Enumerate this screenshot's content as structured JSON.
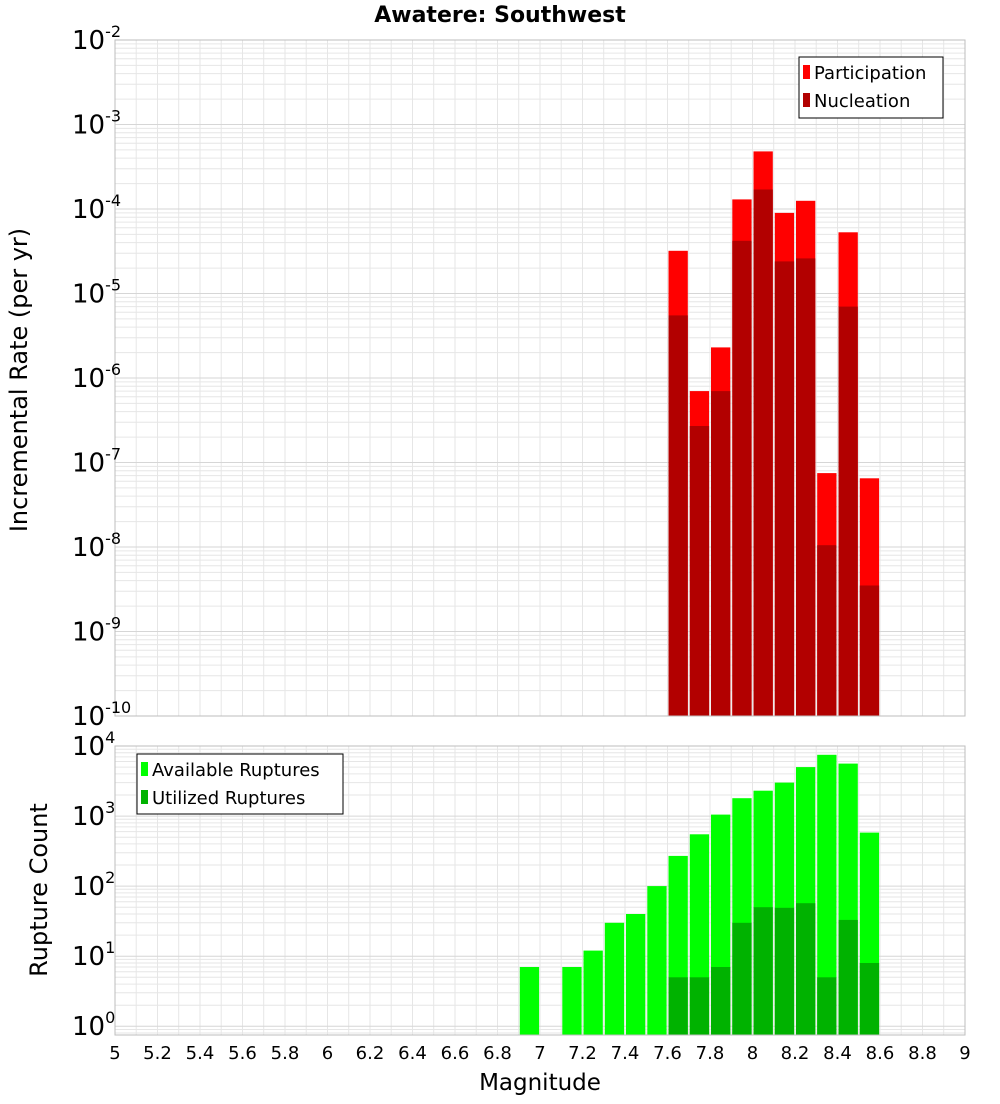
{
  "title": "Awatere: Southwest",
  "colors": {
    "participation": "#ff0000",
    "nucleation": "#b20000",
    "available": "#00ff00",
    "utilized": "#00b200",
    "grid": "#e6e6e6",
    "frame": "#bdbdbd"
  },
  "chart_data": [
    {
      "type": "bar",
      "panel": "top",
      "ylabel": "Incremental Rate (per yr)",
      "yscale": "log",
      "ylim": [
        1e-10,
        0.01
      ],
      "xlim": [
        5,
        9
      ],
      "grid": true,
      "legend_position": "top-right",
      "legend": [
        "Participation",
        "Nucleation"
      ],
      "bin_width": 0.1,
      "x": [
        7.65,
        7.75,
        7.85,
        7.95,
        8.05,
        8.15,
        8.25,
        8.35,
        8.45,
        8.55
      ],
      "series": [
        {
          "name": "Participation",
          "values": [
            3.2e-05,
            7e-07,
            2.3e-06,
            0.00013,
            0.00048,
            9e-05,
            0.000125,
            7.5e-08,
            5.3e-05,
            6.5e-08
          ]
        },
        {
          "name": "Nucleation",
          "values": [
            5.5e-06,
            2.7e-07,
            7e-07,
            4.2e-05,
            0.00017,
            2.4e-05,
            2.6e-05,
            1.05e-08,
            7e-06,
            3.5e-09
          ]
        }
      ],
      "y_ticks": [
        "10|-2",
        "10|-3",
        "10|-4",
        "10|-5",
        "10|-6",
        "10|-7",
        "10|-8",
        "10|-9",
        "10|-10"
      ]
    },
    {
      "type": "bar",
      "panel": "bottom",
      "ylabel": "Rupture Count",
      "xlabel": "Magnitude",
      "yscale": "log",
      "ylim": [
        0.75,
        10000
      ],
      "xlim": [
        5,
        9
      ],
      "grid": true,
      "legend_position": "top-left",
      "legend": [
        "Available Ruptures",
        "Utilized Ruptures"
      ],
      "bin_width": 0.1,
      "x": [
        6.95,
        7.15,
        7.25,
        7.35,
        7.45,
        7.55,
        7.65,
        7.75,
        7.85,
        7.95,
        8.05,
        8.15,
        8.25,
        8.35,
        8.45,
        8.55
      ],
      "series": [
        {
          "name": "Available Ruptures",
          "values": [
            7,
            7,
            12,
            30,
            40,
            100,
            270,
            550,
            1050,
            1800,
            2300,
            3000,
            5000,
            7500,
            5600,
            580
          ]
        },
        {
          "name": "Utilized Ruptures",
          "values": [
            null,
            null,
            null,
            null,
            null,
            null,
            5,
            5,
            7,
            30,
            50,
            49,
            57,
            5,
            33,
            8
          ]
        }
      ],
      "y_ticks": [
        "10|4",
        "10|3",
        "10|2",
        "10|1",
        "10|0"
      ],
      "x_ticks": [
        "5",
        "5.2",
        "5.4",
        "5.6",
        "5.8",
        "6",
        "6.2",
        "6.4",
        "6.6",
        "6.8",
        "7",
        "7.2",
        "7.4",
        "7.6",
        "7.8",
        "8",
        "8.2",
        "8.4",
        "8.6",
        "8.8",
        "9"
      ]
    }
  ]
}
